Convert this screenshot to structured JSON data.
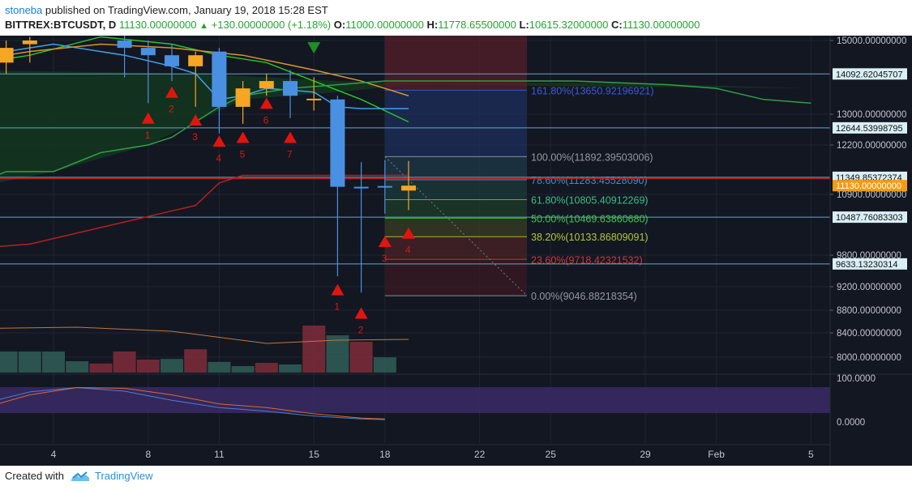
{
  "header": {
    "author": "stoneba",
    "published_text": "published on TradingView.com, January 19, 2018 15:28 EST",
    "symbol": "BITTREX:BTCUSDT, D",
    "last": "11130.00000000",
    "change": "+130.00000000 (+1.18%)",
    "o_label": "O:",
    "o": "11000.00000000",
    "h_label": "H:",
    "h": "11778.65500000",
    "l_label": "L:",
    "l": "10615.32000000",
    "c_label": "C:",
    "c": "11130.00000000"
  },
  "footer": {
    "created": "Created with",
    "brand": "TradingView"
  },
  "colors": {
    "background": "#131722",
    "bull": "#f5a623",
    "bear": "#4a90e2",
    "fib_text": "#9598a1",
    "arrow": "#e0150f",
    "green_arrow": "#1f8f24"
  },
  "chart_data": {
    "type": "candlestick",
    "x_ticks": [
      {
        "t": 4,
        "label": "4"
      },
      {
        "t": 8,
        "label": "8"
      },
      {
        "t": 11,
        "label": "11"
      },
      {
        "t": 15,
        "label": "15"
      },
      {
        "t": 18,
        "label": "18"
      },
      {
        "t": 22,
        "label": "22"
      },
      {
        "t": 25,
        "label": "25"
      },
      {
        "t": 29,
        "label": "29"
      },
      {
        "t": 32,
        "label": "Feb"
      },
      {
        "t": 36,
        "label": "5"
      }
    ],
    "y_ticks": [
      "15000.00000000",
      "13000.00000000",
      "12200.00000000",
      "10900.00000000",
      "9800.00000000",
      "9200.00000000",
      "8800.00000000",
      "8400.00000000",
      "8000.00000000"
    ],
    "y_tick_values": [
      15000,
      13000,
      12200,
      10900,
      9800,
      9200,
      8800,
      8400,
      8000
    ],
    "price_range": [
      7720,
      15300
    ],
    "candles": [
      {
        "t": 1,
        "o": 13000,
        "h": 14500,
        "l": 12900,
        "c": 14400
      },
      {
        "t": 2,
        "o": 14400,
        "h": 15000,
        "l": 14100,
        "c": 14800
      },
      {
        "t": 3,
        "o": 14900,
        "h": 15100,
        "l": 14400,
        "c": 15000
      },
      {
        "t": 7,
        "o": 15000,
        "h": 15300,
        "l": 14000,
        "c": 14800
      },
      {
        "t": 8,
        "o": 14800,
        "h": 15000,
        "l": 13300,
        "c": 14600
      },
      {
        "t": 9,
        "o": 14600,
        "h": 14900,
        "l": 13900,
        "c": 14300
      },
      {
        "t": 10,
        "o": 14300,
        "h": 14700,
        "l": 13200,
        "c": 14600
      },
      {
        "t": 11,
        "o": 14700,
        "h": 14800,
        "l": 12500,
        "c": 13200
      },
      {
        "t": 12,
        "o": 13200,
        "h": 13900,
        "l": 12750,
        "c": 13700
      },
      {
        "t": 13,
        "o": 13700,
        "h": 14100,
        "l": 13500,
        "c": 13900
      },
      {
        "t": 14,
        "o": 13900,
        "h": 14200,
        "l": 12900,
        "c": 13500
      },
      {
        "t": 15,
        "o": 13400,
        "h": 14000,
        "l": 13100,
        "c": 13420
      },
      {
        "t": 16,
        "o": 13400,
        "h": 13500,
        "l": 9400,
        "c": 11100
      },
      {
        "t": 17,
        "o": 11100,
        "h": 11750,
        "l": 9100,
        "c": 11070
      },
      {
        "t": 18,
        "o": 11120,
        "h": 11800,
        "l": 10550,
        "c": 11100
      },
      {
        "t": 19,
        "o": 11000,
        "h": 11779,
        "l": 10615,
        "c": 11130
      }
    ],
    "series": [
      {
        "name": "",
        "color": "#26c726",
        "points": [
          [
            0,
            14300
          ],
          [
            3,
            14600
          ],
          [
            6,
            15100
          ],
          [
            9,
            14900
          ],
          [
            11,
            14600
          ],
          [
            13,
            14400
          ],
          [
            15,
            13900
          ],
          [
            17,
            13400
          ],
          [
            19,
            12800
          ]
        ]
      },
      {
        "name": "",
        "color": "#3fa0e8",
        "points": [
          [
            0,
            14500
          ],
          [
            4,
            14900
          ],
          [
            7,
            14600
          ],
          [
            9,
            14300
          ],
          [
            10,
            14100
          ],
          [
            11,
            13400
          ],
          [
            12,
            13500
          ],
          [
            13,
            13700
          ],
          [
            15,
            13600
          ],
          [
            16,
            13200
          ],
          [
            17,
            13150
          ],
          [
            18,
            13150
          ],
          [
            19,
            13150
          ]
        ]
      },
      {
        "name": "",
        "color": "#d9932a",
        "points": [
          [
            0,
            14400
          ],
          [
            3,
            14700
          ],
          [
            6,
            14900
          ],
          [
            9,
            14800
          ],
          [
            12,
            14600
          ],
          [
            15,
            14200
          ],
          [
            17,
            13900
          ],
          [
            19,
            13500
          ]
        ]
      },
      {
        "name": "",
        "color": "#b51f1f",
        "points": [
          [
            0,
            9900
          ],
          [
            3,
            10000
          ],
          [
            6,
            10300
          ],
          [
            9,
            10600
          ],
          [
            10,
            10700
          ],
          [
            11,
            11200
          ],
          [
            12,
            11400
          ],
          [
            14,
            11400
          ],
          [
            16,
            11400
          ],
          [
            18,
            11400
          ],
          [
            19,
            11400
          ]
        ]
      },
      {
        "name": "",
        "color": "#2fa046",
        "points": [
          [
            0,
            11000
          ],
          [
            2,
            11500
          ],
          [
            4,
            11500
          ],
          [
            6,
            12000
          ],
          [
            8,
            12200
          ],
          [
            9,
            12400
          ],
          [
            10,
            12800
          ],
          [
            11,
            13200
          ],
          [
            12,
            13500
          ],
          [
            14,
            13700
          ],
          [
            16,
            13800
          ],
          [
            18,
            13900
          ],
          [
            22,
            13900
          ],
          [
            26,
            13900
          ],
          [
            30,
            13800
          ],
          [
            32,
            13700
          ],
          [
            34,
            13400
          ],
          [
            36,
            13300
          ]
        ]
      }
    ],
    "cloud": {
      "upper": [
        [
          0,
          14200
        ],
        [
          10,
          14100
        ],
        [
          16,
          13900
        ],
        [
          19,
          13850
        ],
        [
          28,
          13850
        ],
        [
          36,
          13700
        ]
      ],
      "lower": [
        [
          0,
          11000
        ],
        [
          4,
          11500
        ],
        [
          8,
          12200
        ],
        [
          10,
          12800
        ],
        [
          12,
          13400
        ],
        [
          16,
          13600
        ],
        [
          19,
          13800
        ],
        [
          36,
          13700
        ]
      ]
    },
    "horizontal_lines": [
      {
        "value": 14092.62045707,
        "label": "14092.62045707",
        "color": "#5fa8c4"
      },
      {
        "value": 12644.53998795,
        "label": "12644.53998795",
        "color": "#5fa8c4"
      },
      {
        "value": 11349.85372374,
        "label": "11349.85372374",
        "color": "#5fa8c4"
      },
      {
        "value": 10487.76083303,
        "label": "10487.76083303",
        "color": "#5fa8c4"
      },
      {
        "value": 9633.13230314,
        "label": "9633.13230314",
        "color": "#5fa8c4"
      }
    ],
    "current_price_label": "11130.00000000",
    "fib_box": {
      "t_start": 18,
      "t_end": 24
    },
    "fib_levels": [
      {
        "value": 13650.92196921,
        "label": "161.80%(13650.92196921)",
        "color": "#3b5ad6"
      },
      {
        "value": 11892.39503006,
        "label": "100.00%(11892.39503006)",
        "color": "#9598a1"
      },
      {
        "value": 11283.4552809,
        "label": "78.60%(11283.45528090)",
        "color": "#3d8fd1"
      },
      {
        "value": 10805.40912269,
        "label": "61.80%(10805.40912269)",
        "color": "#3cbf84"
      },
      {
        "value": 10469.6386068,
        "label": "50.00%(10469.63860680)",
        "color": "#3fc73f"
      },
      {
        "value": 10133.86809091,
        "label": "38.20%(10133.86809091)",
        "color": "#b4c73a"
      },
      {
        "value": 9718.42321532,
        "label": "23.60%(9718.42321532)",
        "color": "#d13636"
      },
      {
        "value": 9046.88218354,
        "label": "0.00%(9046.88218354)",
        "color": "#9598a1"
      }
    ],
    "red_arrows": [
      {
        "t": 8,
        "v": 12900,
        "label": "1"
      },
      {
        "t": 9,
        "v": 13600,
        "label": "2"
      },
      {
        "t": 10,
        "v": 12850,
        "label": "3"
      },
      {
        "t": 11,
        "v": 12300,
        "label": "4"
      },
      {
        "t": 12,
        "v": 12400,
        "label": "5"
      },
      {
        "t": 13,
        "v": 13300,
        "label": "6"
      },
      {
        "t": 14,
        "v": 12400,
        "label": "7"
      },
      {
        "t": 16,
        "v": 9150,
        "label": "1"
      },
      {
        "t": 17,
        "v": 8750,
        "label": "2"
      },
      {
        "t": 18,
        "v": 10050,
        "label": "3"
      },
      {
        "t": 19,
        "v": 10200,
        "label": "4"
      }
    ],
    "green_arrow": {
      "t": 15,
      "v": 14800
    },
    "volume": [
      {
        "t": 0,
        "v": 0.45,
        "up": false
      },
      {
        "t": 1,
        "v": 0.35,
        "up": false
      },
      {
        "t": 2,
        "v": 0.65,
        "up": false
      },
      {
        "t": 3,
        "v": 0.65,
        "up": false
      },
      {
        "t": 4,
        "v": 0.65,
        "up": false
      },
      {
        "t": 5,
        "v": 0.35,
        "up": false
      },
      {
        "t": 6,
        "v": 0.28,
        "up": true
      },
      {
        "t": 7,
        "v": 0.65,
        "up": true
      },
      {
        "t": 8,
        "v": 0.4,
        "up": true
      },
      {
        "t": 9,
        "v": 0.42,
        "up": false
      },
      {
        "t": 10,
        "v": 0.72,
        "up": true
      },
      {
        "t": 11,
        "v": 0.33,
        "up": false
      },
      {
        "t": 12,
        "v": 0.2,
        "up": false
      },
      {
        "t": 13,
        "v": 0.3,
        "up": true
      },
      {
        "t": 14,
        "v": 0.25,
        "up": false
      },
      {
        "t": 15,
        "v": 1.45,
        "up": true
      },
      {
        "t": 16,
        "v": 1.15,
        "up": false
      },
      {
        "t": 17,
        "v": 0.95,
        "up": true
      },
      {
        "t": 18,
        "v": 0.47,
        "up": false
      }
    ],
    "rsi_ticks": [
      "100.0000",
      "0.0000"
    ],
    "rsi_lines": [
      {
        "color": "#4a7fd6",
        "points": [
          [
            0,
            30
          ],
          [
            3,
            78
          ],
          [
            5,
            90
          ],
          [
            7,
            80
          ],
          [
            9,
            55
          ],
          [
            11,
            35
          ],
          [
            13,
            25
          ],
          [
            15,
            12
          ],
          [
            17,
            4
          ],
          [
            18,
            2
          ]
        ]
      },
      {
        "color": "#e0682d",
        "points": [
          [
            0,
            15
          ],
          [
            3,
            70
          ],
          [
            5,
            90
          ],
          [
            7,
            88
          ],
          [
            9,
            70
          ],
          [
            11,
            45
          ],
          [
            13,
            35
          ],
          [
            15,
            18
          ],
          [
            17,
            6
          ],
          [
            18,
            4
          ]
        ]
      }
    ]
  }
}
